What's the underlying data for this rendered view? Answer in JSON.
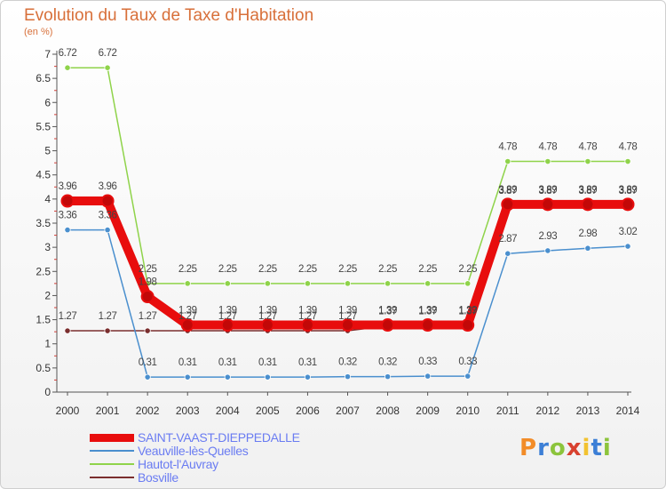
{
  "title": "Evolution du Taux de Taxe d'Habitation",
  "subtitle": "(en %)",
  "logo": {
    "letters": [
      "P",
      "r",
      "o",
      "x",
      "i",
      "t",
      "i"
    ],
    "colors": [
      "#f28c28",
      "#3c7fd6",
      "#8cc43c",
      "#d8412f",
      "#f2c230",
      "#3c7fd6",
      "#8cc43c"
    ]
  },
  "chart_data": {
    "type": "line",
    "categories": [
      "2000",
      "2001",
      "2002",
      "2003",
      "2004",
      "2005",
      "2006",
      "2007",
      "2008",
      "2009",
      "2010",
      "2011",
      "2012",
      "2013",
      "2014"
    ],
    "y_ticks": [
      "0",
      "0.5",
      "1",
      "1.5",
      "2",
      "2.5",
      "3",
      "3.5",
      "4",
      "4.5",
      "5",
      "5.5",
      "6",
      "6.5",
      "7"
    ],
    "ylim": [
      0,
      7
    ],
    "grid": false,
    "legend_position": "bottom-left",
    "series": [
      {
        "name": "Bosville",
        "color": "#7a2e2e",
        "emphasis": false,
        "values": [
          1.27,
          1.27,
          1.27,
          1.27,
          1.27,
          1.27,
          1.27,
          1.27,
          1.37,
          1.37,
          1.37,
          3.87,
          3.87,
          3.87,
          3.87
        ],
        "labels": [
          "1.27",
          "1.27",
          "1.27",
          "1.27",
          "1.27",
          "1.27",
          "1.27",
          "1.27",
          "1.37",
          "1.37",
          "1.37",
          "3.87",
          "3.87",
          "3.87",
          "3.87"
        ]
      },
      {
        "name": "Veauville-lès-Quelles",
        "color": "#4a8fce",
        "emphasis": false,
        "values": [
          3.36,
          3.36,
          0.31,
          0.31,
          0.31,
          0.31,
          0.31,
          0.32,
          0.32,
          0.33,
          0.33,
          2.87,
          2.93,
          2.98,
          3.02
        ],
        "labels": [
          "3.36",
          "3.36",
          "0.31",
          "0.31",
          "0.31",
          "0.31",
          "0.31",
          "0.32",
          "0.32",
          "0.33",
          "0.33",
          "2.87",
          "2.93",
          "2.98",
          "3.02"
        ]
      },
      {
        "name": "Hautot-l'Auvray",
        "color": "#8fd34a",
        "emphasis": false,
        "values": [
          6.72,
          6.72,
          2.25,
          2.25,
          2.25,
          2.25,
          2.25,
          2.25,
          2.25,
          2.25,
          2.25,
          4.78,
          4.78,
          4.78,
          4.78
        ],
        "labels": [
          "6.72",
          "6.72",
          "2.25",
          "2.25",
          "2.25",
          "2.25",
          "2.25",
          "2.25",
          "2.25",
          "2.25",
          "2.25",
          "4.78",
          "4.78",
          "4.78",
          "4.78"
        ]
      },
      {
        "name": "SAINT-VAAST-DIEPPEDALLE",
        "color": "#e80d0d",
        "emphasis": true,
        "values": [
          3.96,
          3.96,
          1.98,
          1.39,
          1.39,
          1.39,
          1.39,
          1.39,
          1.39,
          1.39,
          1.39,
          3.89,
          3.89,
          3.89,
          3.89
        ],
        "labels": [
          "3.96",
          "3.96",
          "1.98",
          "1.39",
          "1.39",
          "1.39",
          "1.39",
          "1.39",
          "1.39",
          "1.39",
          "1.39",
          "3.89",
          "3.89",
          "3.89",
          "3.89"
        ]
      }
    ],
    "legend_order": [
      "SAINT-VAAST-DIEPPEDALLE",
      "Veauville-lès-Quelles",
      "Hautot-l'Auvray",
      "Bosville"
    ]
  }
}
